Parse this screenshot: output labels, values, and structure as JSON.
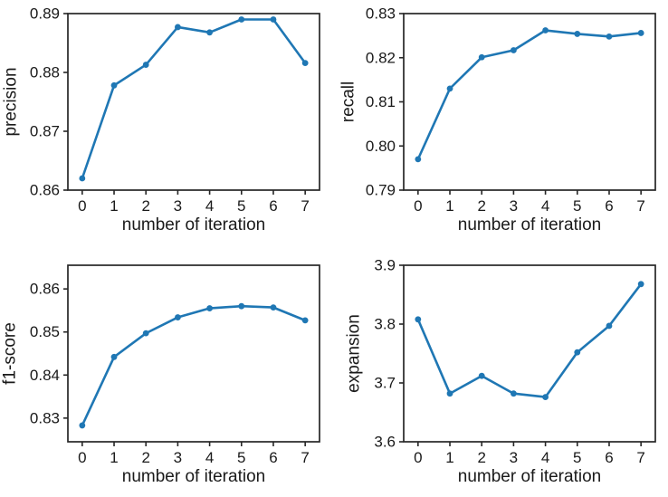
{
  "figure": {
    "background_color": "#ffffff",
    "line_color": "#1f77b4",
    "axis_color": "#262626",
    "text_color": "#1a1a1a",
    "layout": "2x2 grid of subplots",
    "legend": "none",
    "grid": false
  },
  "chart_data": [
    {
      "type": "line",
      "name": "precision",
      "title": "",
      "xlabel": "number of iteration",
      "ylabel": "precision",
      "x": [
        0,
        1,
        2,
        3,
        4,
        5,
        6,
        7
      ],
      "values": [
        0.862,
        0.8778,
        0.8813,
        0.8877,
        0.8868,
        0.889,
        0.889,
        0.8816
      ],
      "xlim": [
        -0.45,
        7.45
      ],
      "ylim": [
        0.86,
        0.89
      ],
      "xticks": [
        0,
        1,
        2,
        3,
        4,
        5,
        6,
        7
      ],
      "xtick_labels": [
        "0",
        "1",
        "2",
        "3",
        "4",
        "5",
        "6",
        "7"
      ],
      "yticks": [
        0.86,
        0.87,
        0.88,
        0.89
      ],
      "ytick_labels": [
        "0.86",
        "0.87",
        "0.88",
        "0.89"
      ],
      "marker": "circle",
      "line_color": "#1f77b4",
      "grid": false,
      "legend_position": "none"
    },
    {
      "type": "line",
      "name": "recall",
      "title": "",
      "xlabel": "number of iteration",
      "ylabel": "recall",
      "x": [
        0,
        1,
        2,
        3,
        4,
        5,
        6,
        7
      ],
      "values": [
        0.797,
        0.813,
        0.8201,
        0.8217,
        0.8262,
        0.8254,
        0.8248,
        0.8256
      ],
      "xlim": [
        -0.45,
        7.45
      ],
      "ylim": [
        0.79,
        0.83
      ],
      "xticks": [
        0,
        1,
        2,
        3,
        4,
        5,
        6,
        7
      ],
      "xtick_labels": [
        "0",
        "1",
        "2",
        "3",
        "4",
        "5",
        "6",
        "7"
      ],
      "yticks": [
        0.79,
        0.8,
        0.81,
        0.82,
        0.83
      ],
      "ytick_labels": [
        "0.79",
        "0.80",
        "0.81",
        "0.82",
        "0.83"
      ],
      "marker": "circle",
      "line_color": "#1f77b4",
      "grid": false,
      "legend_position": "none"
    },
    {
      "type": "line",
      "name": "f1-score",
      "title": "",
      "xlabel": "number of iteration",
      "ylabel": "f1-score",
      "x": [
        0,
        1,
        2,
        3,
        4,
        5,
        6,
        7
      ],
      "values": [
        0.8283,
        0.8442,
        0.8497,
        0.8534,
        0.8555,
        0.856,
        0.8557,
        0.8527
      ],
      "xlim": [
        -0.45,
        7.45
      ],
      "ylim": [
        0.8245,
        0.8655
      ],
      "xticks": [
        0,
        1,
        2,
        3,
        4,
        5,
        6,
        7
      ],
      "xtick_labels": [
        "0",
        "1",
        "2",
        "3",
        "4",
        "5",
        "6",
        "7"
      ],
      "yticks": [
        0.83,
        0.84,
        0.85,
        0.86
      ],
      "ytick_labels": [
        "0.83",
        "0.84",
        "0.85",
        "0.86"
      ],
      "marker": "circle",
      "line_color": "#1f77b4",
      "grid": false,
      "legend_position": "none"
    },
    {
      "type": "line",
      "name": "expansion",
      "title": "",
      "xlabel": "number of iteration",
      "ylabel": "expansion",
      "x": [
        0,
        1,
        2,
        3,
        4,
        5,
        6,
        7
      ],
      "values": [
        3.808,
        3.682,
        3.712,
        3.682,
        3.676,
        3.752,
        3.797,
        3.868
      ],
      "xlim": [
        -0.45,
        7.45
      ],
      "ylim": [
        3.6,
        3.9
      ],
      "xticks": [
        0,
        1,
        2,
        3,
        4,
        5,
        6,
        7
      ],
      "xtick_labels": [
        "0",
        "1",
        "2",
        "3",
        "4",
        "5",
        "6",
        "7"
      ],
      "yticks": [
        3.6,
        3.7,
        3.8,
        3.9
      ],
      "ytick_labels": [
        "3.6",
        "3.7",
        "3.8",
        "3.9"
      ],
      "marker": "circle",
      "line_color": "#1f77b4",
      "grid": false,
      "legend_position": "none"
    }
  ]
}
